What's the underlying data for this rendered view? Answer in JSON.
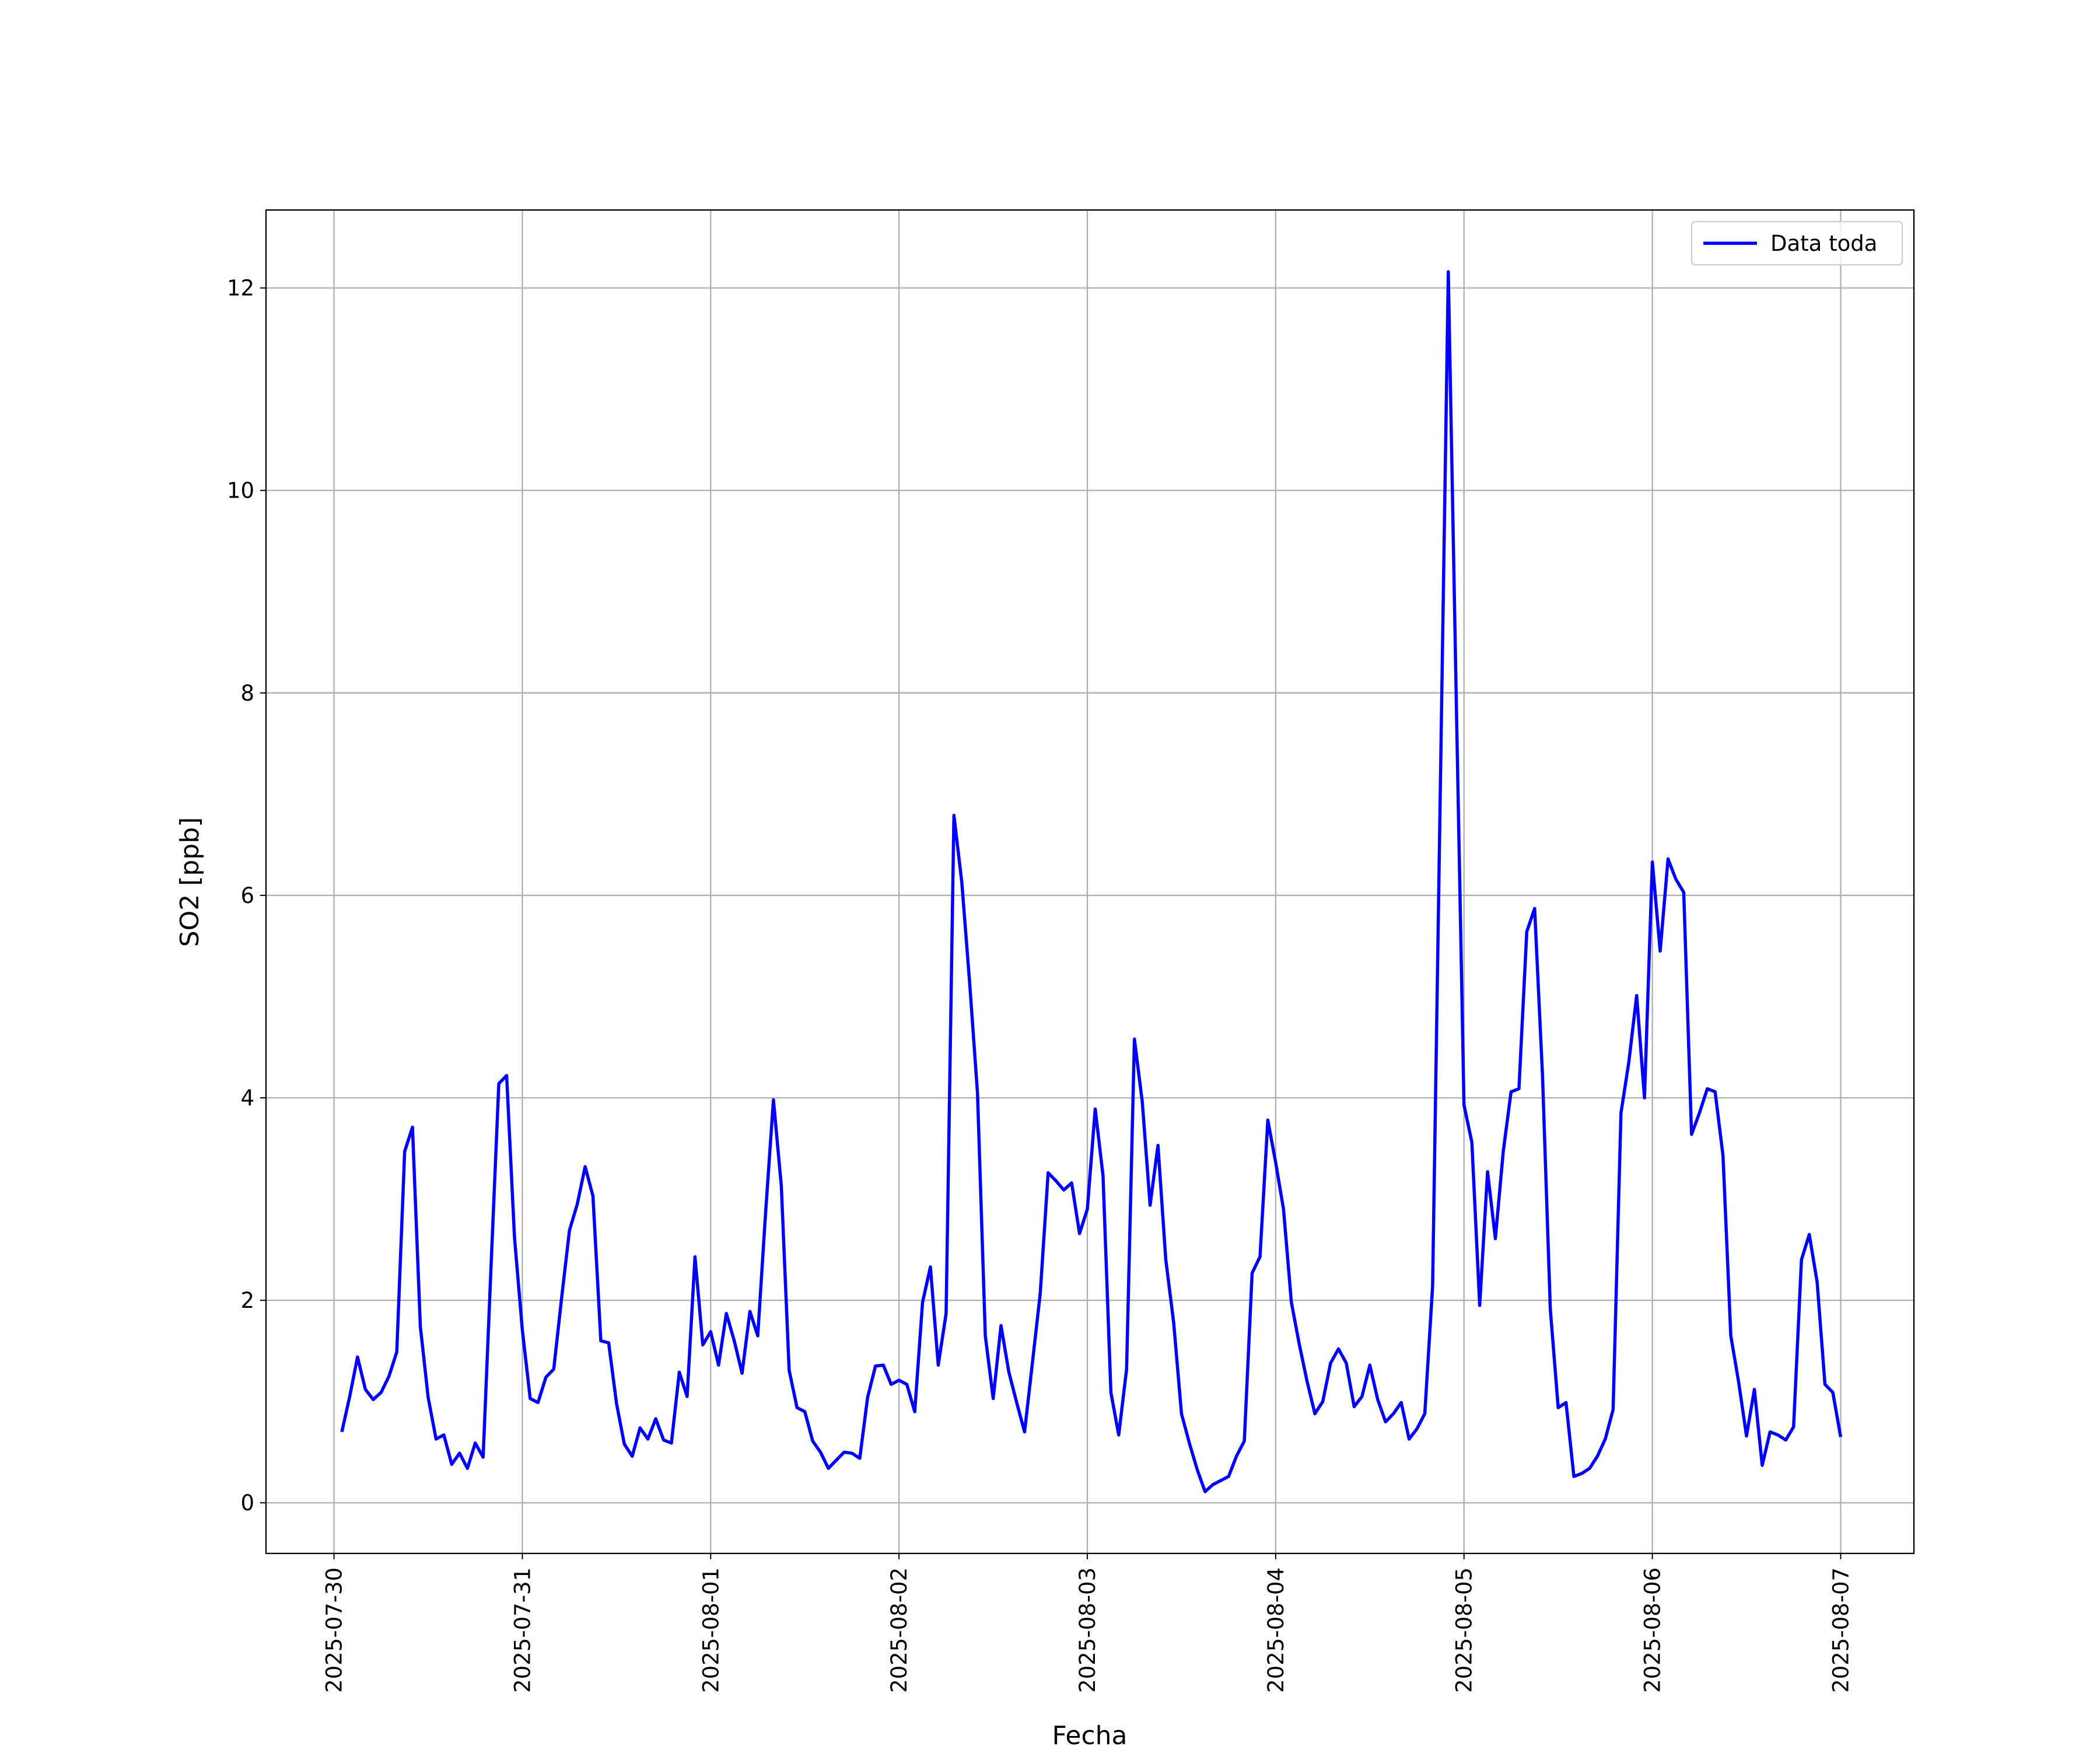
{
  "chart_data": {
    "type": "line",
    "xlabel": "Fecha",
    "ylabel": "SO2 [ppb]",
    "xlim": [
      "2025-07-29 15:20",
      "2025-08-07 09:20"
    ],
    "xticks": [
      "2025-07-30",
      "2025-07-31",
      "2025-08-01",
      "2025-08-02",
      "2025-08-03",
      "2025-08-04",
      "2025-08-05",
      "2025-08-06",
      "2025-08-07"
    ],
    "ylim": [
      -0.5,
      12.77
    ],
    "yticks": [
      0,
      2,
      4,
      6,
      8,
      10,
      12
    ],
    "grid": true,
    "legend": "upper right",
    "x": [
      "2025-07-30 01:00",
      "2025-07-30 02:00",
      "2025-07-30 03:00",
      "2025-07-30 04:00",
      "2025-07-30 05:00",
      "2025-07-30 06:00",
      "2025-07-30 07:00",
      "2025-07-30 08:00",
      "2025-07-30 09:00",
      "2025-07-30 10:00",
      "2025-07-30 11:00",
      "2025-07-30 12:00",
      "2025-07-30 13:00",
      "2025-07-30 14:00",
      "2025-07-30 15:00",
      "2025-07-30 16:00",
      "2025-07-30 17:00",
      "2025-07-30 18:00",
      "2025-07-30 19:00",
      "2025-07-30 20:00",
      "2025-07-30 21:00",
      "2025-07-30 22:00",
      "2025-07-30 23:00",
      "2025-07-31 00:00",
      "2025-07-31 01:00",
      "2025-07-31 02:00",
      "2025-07-31 03:00",
      "2025-07-31 04:00",
      "2025-07-31 05:00",
      "2025-07-31 06:00",
      "2025-07-31 07:00",
      "2025-07-31 08:00",
      "2025-07-31 09:00",
      "2025-07-31 10:00",
      "2025-07-31 11:00",
      "2025-07-31 12:00",
      "2025-07-31 13:00",
      "2025-07-31 14:00",
      "2025-07-31 15:00",
      "2025-07-31 16:00",
      "2025-07-31 17:00",
      "2025-07-31 18:00",
      "2025-07-31 19:00",
      "2025-07-31 20:00",
      "2025-07-31 21:00",
      "2025-07-31 22:00",
      "2025-07-31 23:00",
      "2025-08-01 00:00",
      "2025-08-01 01:00",
      "2025-08-01 02:00",
      "2025-08-01 03:00",
      "2025-08-01 04:00",
      "2025-08-01 05:00",
      "2025-08-01 06:00",
      "2025-08-01 07:00",
      "2025-08-01 08:00",
      "2025-08-01 09:00",
      "2025-08-01 10:00",
      "2025-08-01 11:00",
      "2025-08-01 12:00",
      "2025-08-01 13:00",
      "2025-08-01 14:00",
      "2025-08-01 15:00",
      "2025-08-01 16:00",
      "2025-08-01 17:00",
      "2025-08-01 18:00",
      "2025-08-01 19:00",
      "2025-08-01 20:00",
      "2025-08-01 21:00",
      "2025-08-01 22:00",
      "2025-08-01 23:00",
      "2025-08-02 00:00",
      "2025-08-02 01:00",
      "2025-08-02 02:00",
      "2025-08-02 03:00",
      "2025-08-02 04:00",
      "2025-08-02 05:00",
      "2025-08-02 06:00",
      "2025-08-02 07:00",
      "2025-08-02 08:00",
      "2025-08-02 09:00",
      "2025-08-02 10:00",
      "2025-08-02 11:00",
      "2025-08-02 12:00",
      "2025-08-02 13:00",
      "2025-08-02 14:00",
      "2025-08-02 15:00",
      "2025-08-02 16:00",
      "2025-08-02 17:00",
      "2025-08-02 18:00",
      "2025-08-02 19:00",
      "2025-08-02 20:00",
      "2025-08-02 21:00",
      "2025-08-02 22:00",
      "2025-08-02 23:00",
      "2025-08-03 00:00",
      "2025-08-03 01:00",
      "2025-08-03 02:00",
      "2025-08-03 03:00",
      "2025-08-03 04:00",
      "2025-08-03 05:00",
      "2025-08-03 06:00",
      "2025-08-03 07:00",
      "2025-08-03 08:00",
      "2025-08-03 09:00",
      "2025-08-03 10:00",
      "2025-08-03 11:00",
      "2025-08-03 12:00",
      "2025-08-03 13:00",
      "2025-08-03 14:00",
      "2025-08-03 15:00",
      "2025-08-03 16:00",
      "2025-08-03 17:00",
      "2025-08-03 18:00",
      "2025-08-03 19:00",
      "2025-08-03 20:00",
      "2025-08-03 21:00",
      "2025-08-03 22:00",
      "2025-08-03 23:00",
      "2025-08-04 00:00",
      "2025-08-04 01:00",
      "2025-08-04 02:00",
      "2025-08-04 03:00",
      "2025-08-04 04:00",
      "2025-08-04 05:00",
      "2025-08-04 06:00",
      "2025-08-04 07:00",
      "2025-08-04 08:00",
      "2025-08-04 09:00",
      "2025-08-04 10:00",
      "2025-08-04 11:00",
      "2025-08-04 12:00",
      "2025-08-04 13:00",
      "2025-08-04 14:00",
      "2025-08-04 15:00",
      "2025-08-04 16:00",
      "2025-08-04 17:00",
      "2025-08-04 18:00",
      "2025-08-04 19:00",
      "2025-08-04 20:00",
      "2025-08-04 21:00",
      "2025-08-04 22:00",
      "2025-08-04 23:00",
      "2025-08-05 00:00",
      "2025-08-05 01:00",
      "2025-08-05 02:00",
      "2025-08-05 03:00",
      "2025-08-05 04:00",
      "2025-08-05 05:00",
      "2025-08-05 06:00",
      "2025-08-05 07:00",
      "2025-08-05 08:00",
      "2025-08-05 09:00",
      "2025-08-05 10:00",
      "2025-08-05 11:00",
      "2025-08-05 12:00",
      "2025-08-05 13:00",
      "2025-08-05 14:00",
      "2025-08-05 15:00",
      "2025-08-05 16:00",
      "2025-08-05 17:00",
      "2025-08-05 18:00",
      "2025-08-05 19:00",
      "2025-08-05 20:00",
      "2025-08-05 21:00",
      "2025-08-05 22:00",
      "2025-08-05 23:00",
      "2025-08-06 00:00",
      "2025-08-06 01:00",
      "2025-08-06 02:00",
      "2025-08-06 03:00",
      "2025-08-06 04:00",
      "2025-08-06 05:00",
      "2025-08-06 06:00",
      "2025-08-06 07:00",
      "2025-08-06 08:00",
      "2025-08-06 09:00",
      "2025-08-06 10:00",
      "2025-08-06 11:00",
      "2025-08-06 12:00",
      "2025-08-06 13:00",
      "2025-08-06 14:00",
      "2025-08-06 15:00",
      "2025-08-06 16:00",
      "2025-08-06 17:00",
      "2025-08-06 18:00",
      "2025-08-06 19:00",
      "2025-08-06 20:00",
      "2025-08-06 21:00",
      "2025-08-06 22:00",
      "2025-08-06 23:00",
      "2025-08-07 00:00"
    ],
    "series": [
      {
        "name": "Data toda",
        "color": "#0000ff",
        "values": [
          0.7,
          1.05,
          1.44,
          1.12,
          1.02,
          1.09,
          1.25,
          1.49,
          3.47,
          3.71,
          1.74,
          1.04,
          0.63,
          0.67,
          0.38,
          0.49,
          0.34,
          0.59,
          0.45,
          2.31,
          4.14,
          4.22,
          2.62,
          1.71,
          1.03,
          0.99,
          1.24,
          1.32,
          2.02,
          2.69,
          2.95,
          3.32,
          3.03,
          1.6,
          1.58,
          0.98,
          0.58,
          0.46,
          0.74,
          0.63,
          0.83,
          0.62,
          0.59,
          1.29,
          1.05,
          2.43,
          1.56,
          1.69,
          1.36,
          1.87,
          1.6,
          1.28,
          1.89,
          1.65,
          2.87,
          3.98,
          3.13,
          1.31,
          0.94,
          0.9,
          0.61,
          0.5,
          0.34,
          0.42,
          0.5,
          0.49,
          0.44,
          1.04,
          1.35,
          1.36,
          1.17,
          1.21,
          1.17,
          0.9,
          1.98,
          2.33,
          1.36,
          1.87,
          6.79,
          6.13,
          5.14,
          4.05,
          1.65,
          1.03,
          1.75,
          1.29,
          0.99,
          0.7,
          1.38,
          2.07,
          3.26,
          3.18,
          3.09,
          3.16,
          2.66,
          2.9,
          3.89,
          3.23,
          1.09,
          0.67,
          1.32,
          4.58,
          3.96,
          2.94,
          3.53,
          2.4,
          1.78,
          0.88,
          0.59,
          0.33,
          0.11,
          0.18,
          0.22,
          0.26,
          0.46,
          0.61,
          2.27,
          2.43,
          3.78,
          3.36,
          2.9,
          1.98,
          1.57,
          1.2,
          0.88,
          1.0,
          1.38,
          1.52,
          1.38,
          0.95,
          1.05,
          1.36,
          1.02,
          0.8,
          0.88,
          0.99,
          0.63,
          0.73,
          0.88,
          2.14,
          7.15,
          12.16,
          7.98,
          3.93,
          3.56,
          1.95,
          3.27,
          2.61,
          3.47,
          4.06,
          4.09,
          5.64,
          5.87,
          4.22,
          1.91,
          0.94,
          0.99,
          0.26,
          0.29,
          0.34,
          0.46,
          0.63,
          0.92,
          3.85,
          4.35,
          5.01,
          4.0,
          6.33,
          5.45,
          6.36,
          6.16,
          6.03,
          3.64,
          3.85,
          4.09,
          4.06,
          3.43,
          1.65,
          1.19,
          0.66,
          1.12,
          0.37,
          0.7,
          0.67,
          0.62,
          0.75,
          2.4,
          2.65,
          2.18,
          1.17,
          1.09,
          0.65
        ]
      }
    ]
  }
}
